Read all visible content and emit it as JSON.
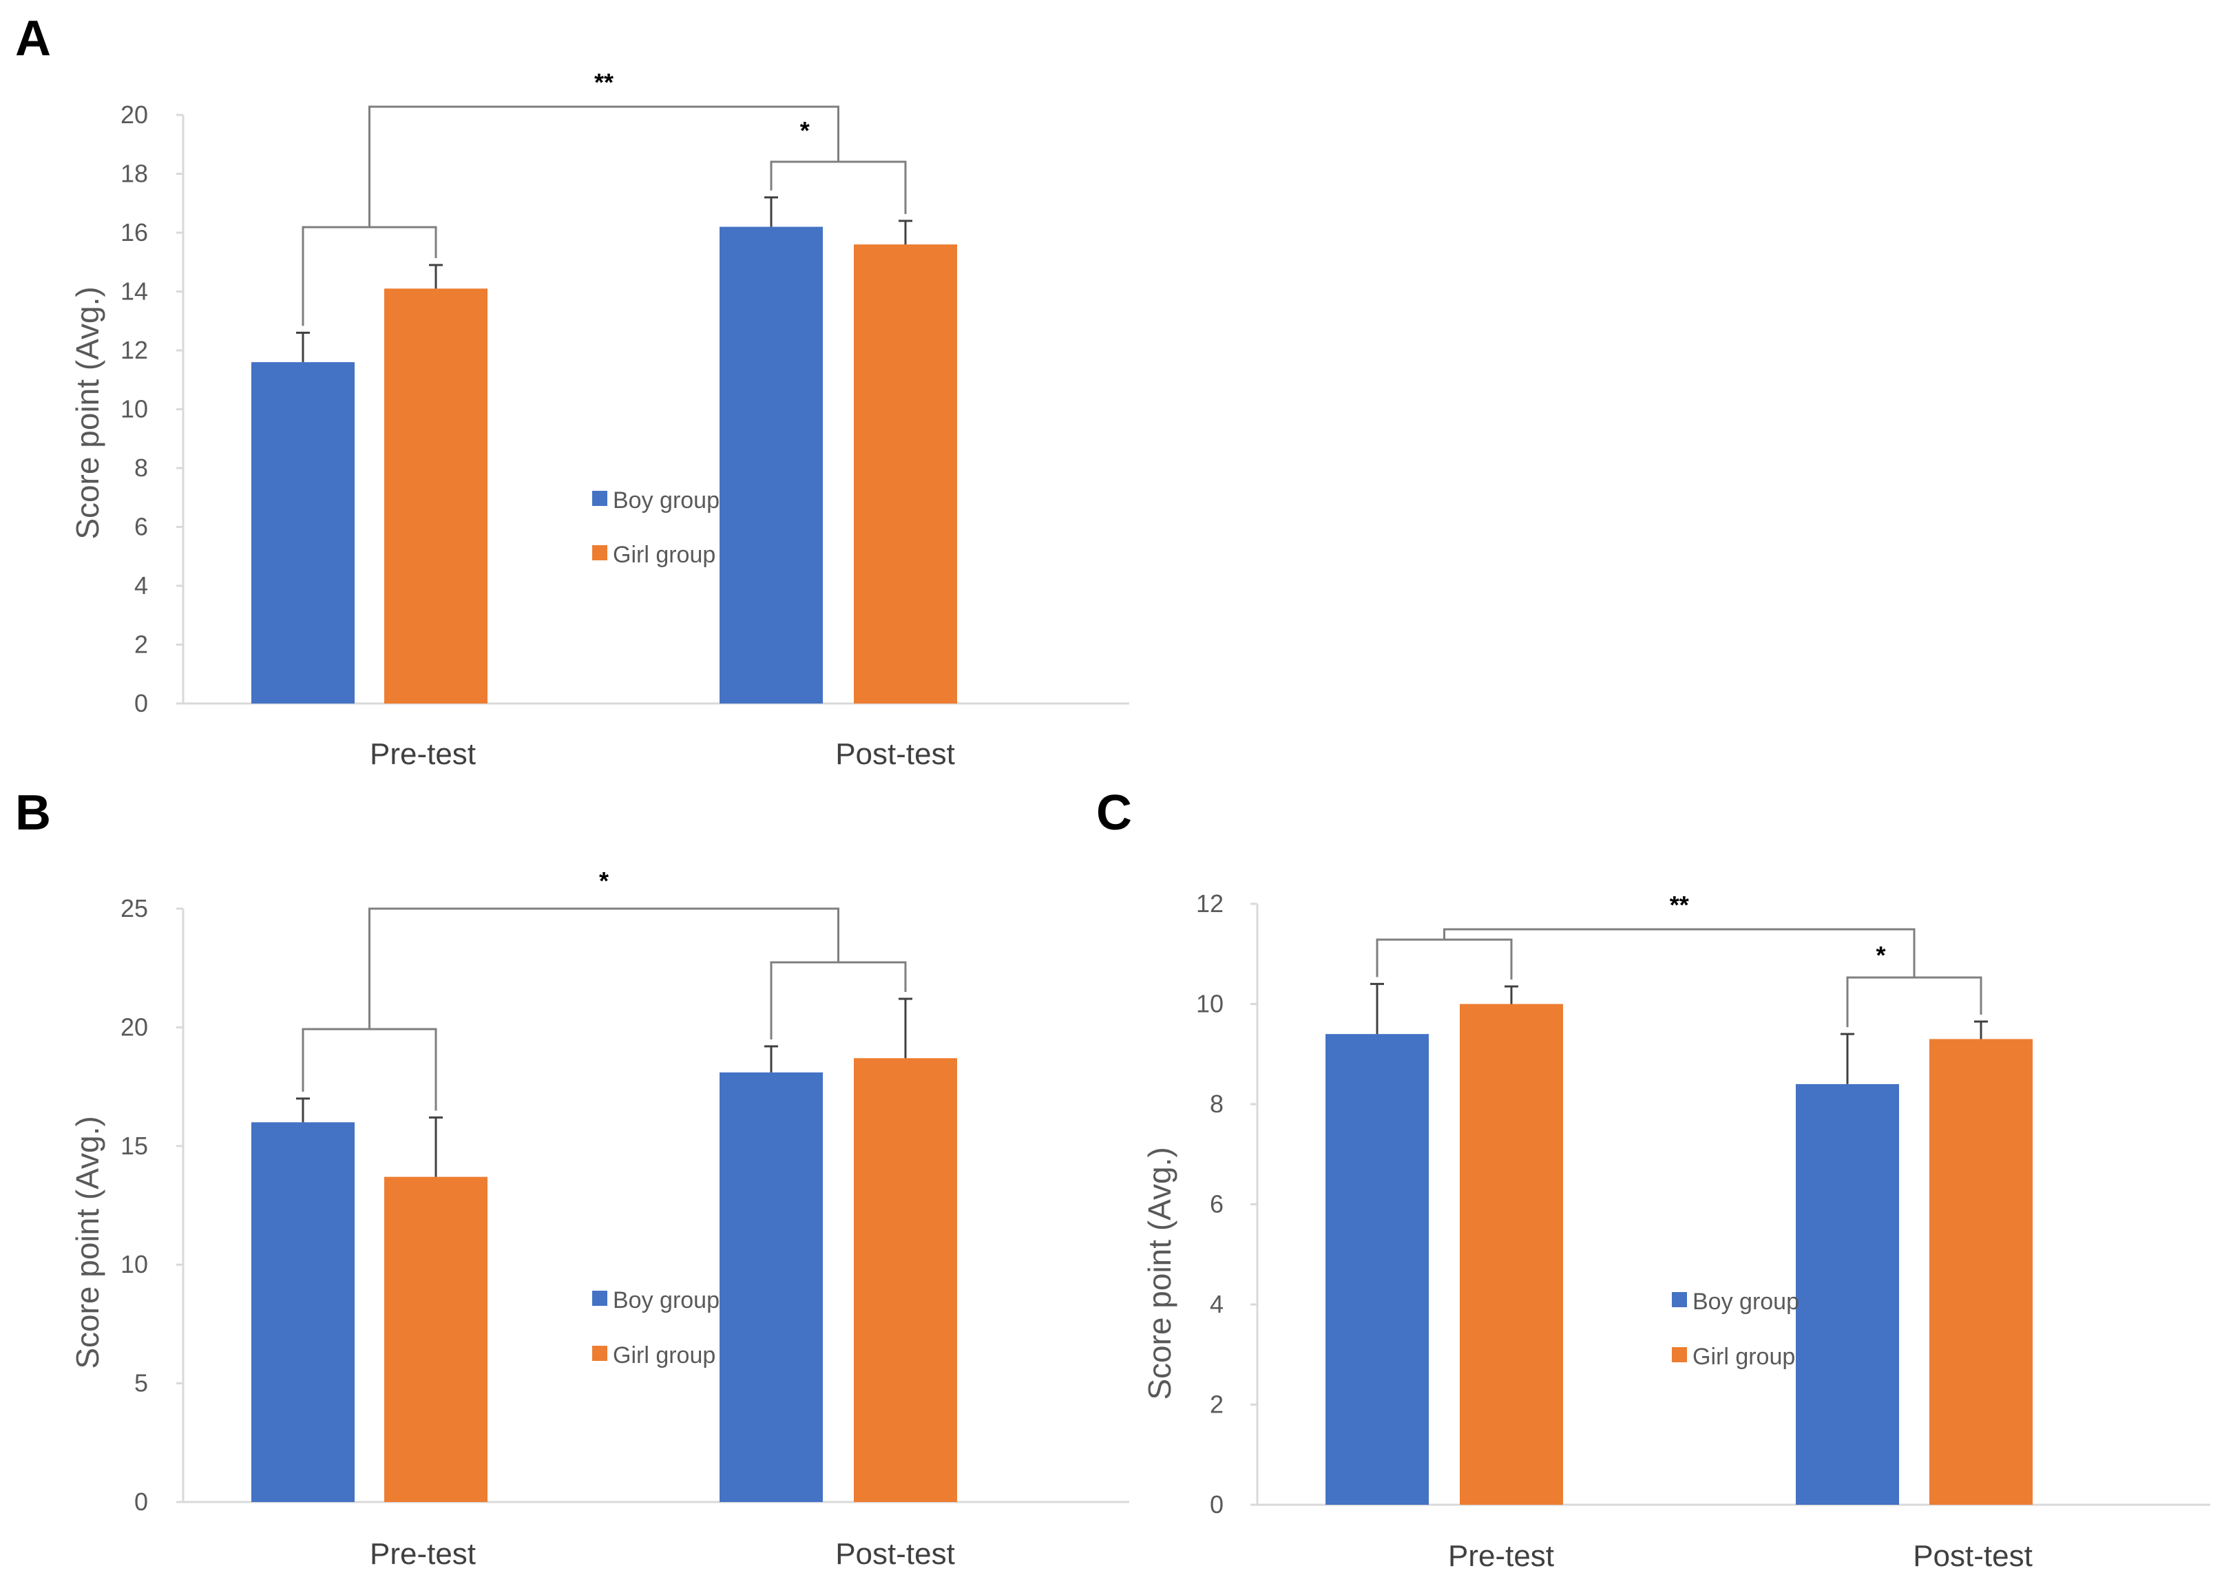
{
  "chart_data": [
    {
      "panel": "A",
      "type": "bar",
      "categories": [
        "Pre-test",
        "Post-test"
      ],
      "ylabel": "Score point (Avg.)",
      "ylim": [
        0,
        20
      ],
      "yticks": [
        0,
        2,
        4,
        6,
        8,
        10,
        12,
        14,
        16,
        18,
        20
      ],
      "series": [
        {
          "name": "Boy group",
          "color": "#4472C4",
          "values": [
            11.6,
            16.2
          ],
          "errors": [
            1.0,
            1.0
          ]
        },
        {
          "name": "Girl group",
          "color": "#ED7D31",
          "values": [
            14.1,
            15.6
          ],
          "errors": [
            0.8,
            0.8
          ]
        }
      ],
      "significance": [
        {
          "type": "inter",
          "label": "**"
        },
        {
          "type": "pre",
          "label": ""
        },
        {
          "type": "post",
          "label": "*"
        }
      ]
    },
    {
      "panel": "B",
      "type": "bar",
      "categories": [
        "Pre-test",
        "Post-test"
      ],
      "ylabel": "Score point (Avg.)",
      "ylim": [
        0,
        25
      ],
      "yticks": [
        0,
        5,
        10,
        15,
        20,
        25
      ],
      "series": [
        {
          "name": "Boy group",
          "color": "#4472C4",
          "values": [
            16.0,
            18.1
          ],
          "errors": [
            1.0,
            1.1
          ]
        },
        {
          "name": "Girl group",
          "color": "#ED7D31",
          "values": [
            13.7,
            18.7
          ],
          "errors": [
            2.5,
            2.5
          ]
        }
      ],
      "significance": [
        {
          "type": "inter",
          "label": "*"
        },
        {
          "type": "pre",
          "label": ""
        },
        {
          "type": "post",
          "label": ""
        }
      ]
    },
    {
      "panel": "C",
      "type": "bar",
      "categories": [
        "Pre-test",
        "Post-test"
      ],
      "ylabel": "Score point (Avg.)",
      "ylim": [
        0,
        12
      ],
      "yticks": [
        0,
        2,
        4,
        6,
        8,
        10,
        12
      ],
      "series": [
        {
          "name": "Boy group",
          "color": "#4472C4",
          "values": [
            9.4,
            8.4
          ],
          "errors": [
            1.0,
            1.0
          ]
        },
        {
          "name": "Girl group",
          "color": "#ED7D31",
          "values": [
            10.0,
            9.3
          ],
          "errors": [
            0.35,
            0.35
          ]
        }
      ],
      "significance": [
        {
          "type": "inter",
          "label": "**"
        },
        {
          "type": "pre",
          "label": ""
        },
        {
          "type": "post",
          "label": "*"
        }
      ]
    }
  ]
}
